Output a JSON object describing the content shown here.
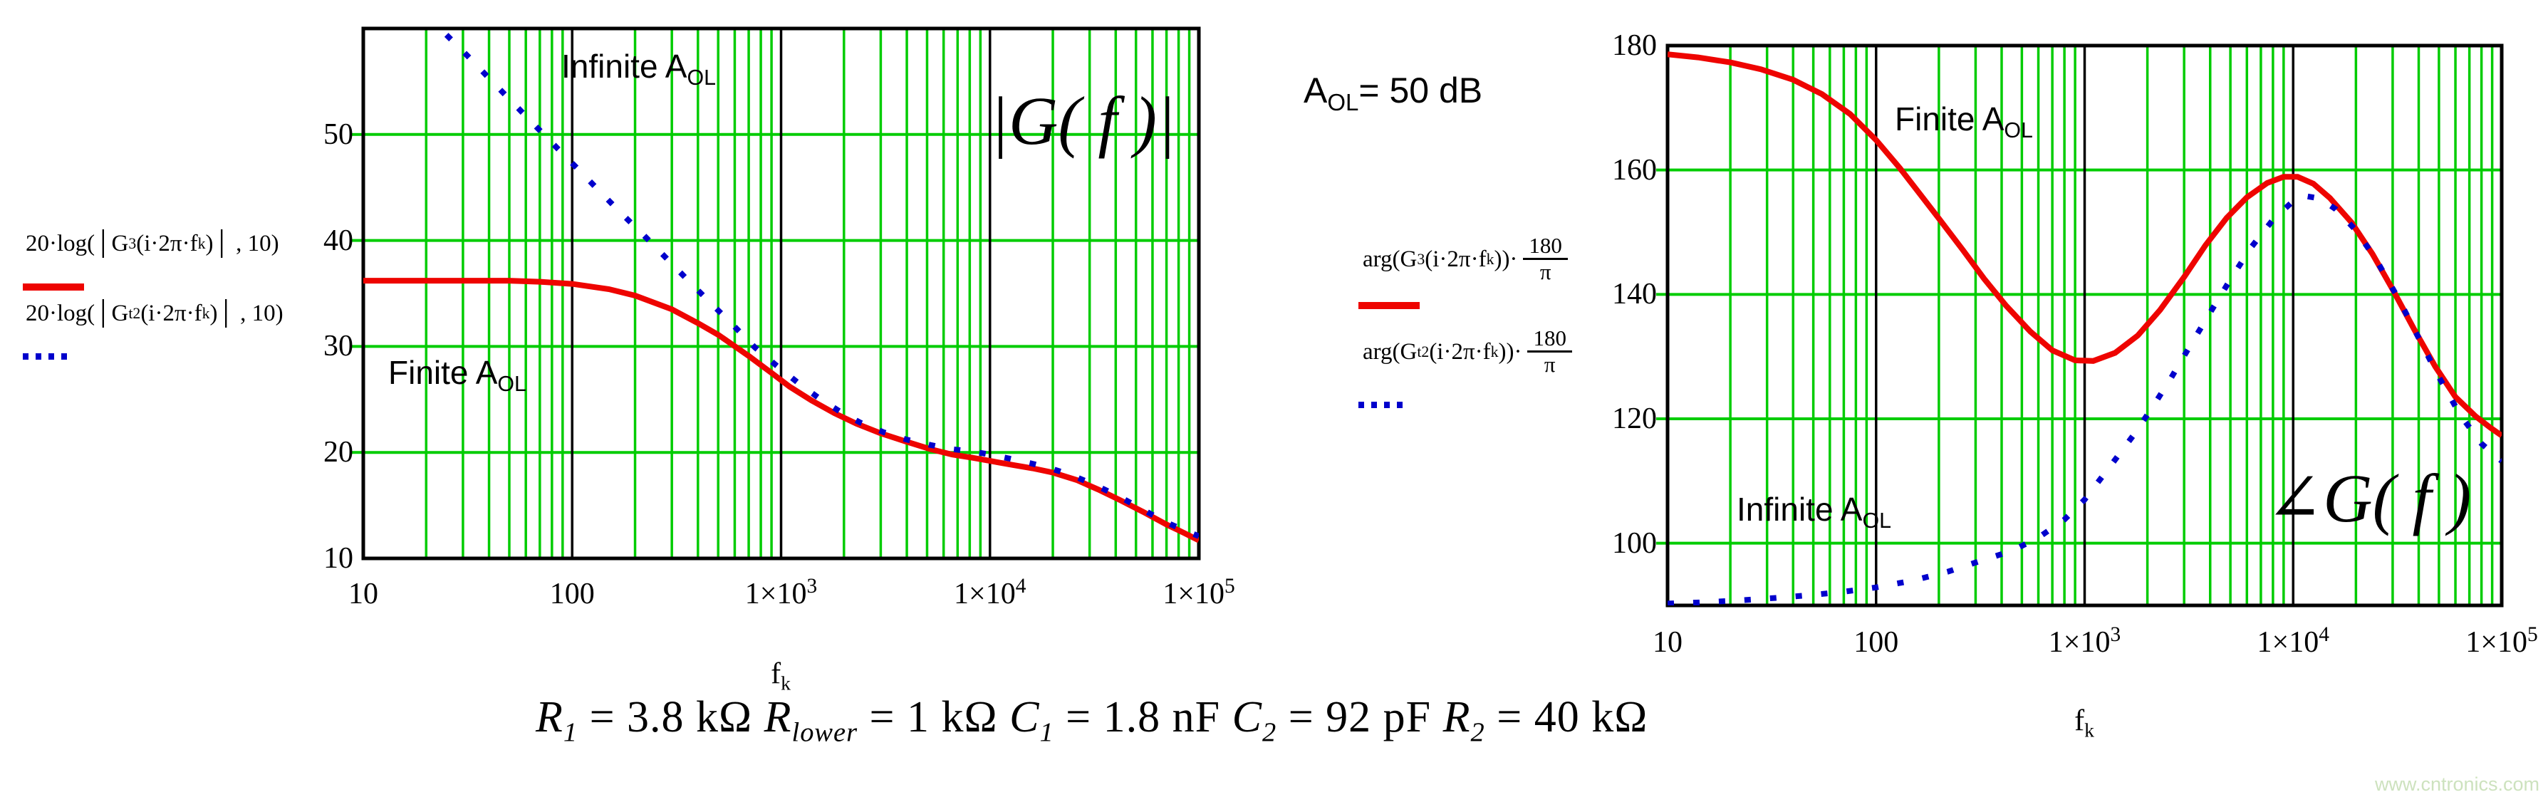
{
  "watermark": {
    "text": "www.cntronics.com",
    "color": "#cde2be"
  },
  "aol_note": {
    "segs": [
      {
        "t": "A"
      },
      {
        "s": "OL"
      },
      {
        "t": "= 50 dB"
      }
    ]
  },
  "formula": {
    "segs": [
      {
        "t": "R",
        "i": 1
      },
      {
        "s": "1",
        "i": 1
      },
      {
        "t": " = 3.8 kΩ "
      },
      {
        "t": "R",
        "i": 1
      },
      {
        "s": "lower",
        "i": 1
      },
      {
        "t": " = 1 kΩ "
      },
      {
        "t": "C",
        "i": 1
      },
      {
        "s": "1",
        "i": 1
      },
      {
        "t": " = 1.8 nF "
      },
      {
        "t": "C",
        "i": 1
      },
      {
        "s": "2",
        "i": 1
      },
      {
        "t": " = 92 pF "
      },
      {
        "t": "R",
        "i": 1
      },
      {
        "s": "2",
        "i": 1
      },
      {
        "t": " = 40 kΩ"
      }
    ]
  },
  "colors": {
    "grid_green": "#00cc00",
    "decade_black": "#000000",
    "trace_red": "#ee0400",
    "trace_blue": "#0000cc"
  },
  "chart_data": [
    {
      "type": "line",
      "title": "|G( f )|",
      "x_scale": "log",
      "x_range": [
        10,
        100000
      ],
      "y_range": [
        10,
        60
      ],
      "y_gridlines": [
        20,
        30,
        40,
        50
      ],
      "x_decades": [
        100,
        1000,
        10000
      ],
      "y_ticks": [
        50,
        40,
        30,
        20,
        10
      ],
      "x_ticks": [
        {
          "v": 10,
          "m": "10",
          "sup": ""
        },
        {
          "v": 100,
          "m": "100",
          "sup": ""
        },
        {
          "v": 1000,
          "m": "1×10",
          "sup": "3"
        },
        {
          "v": 10000,
          "m": "1×10",
          "sup": "4"
        },
        {
          "v": 100000,
          "m": "1×10",
          "sup": "5"
        }
      ],
      "xlabel_segs": [
        {
          "t": "f"
        },
        {
          "s": "k"
        }
      ],
      "annotations": [
        {
          "name": "infinite-aol-label",
          "segs": [
            {
              "t": "Infinite A"
            },
            {
              "s": "OL"
            }
          ]
        },
        {
          "name": "finite-aol-label",
          "segs": [
            {
              "t": "Finite A"
            },
            {
              "s": "OL"
            }
          ]
        }
      ],
      "legend": [
        {
          "style": "solid-red",
          "segs": [
            {
              "t": "20·log"
            },
            {
              "t": "(│G"
            },
            {
              "s": "3"
            },
            {
              "t": "(i·2π·f"
            },
            {
              "s": "k"
            },
            {
              "t": ")│ , 10)"
            }
          ]
        },
        {
          "style": "dotted-blue",
          "segs": [
            {
              "t": "20·log"
            },
            {
              "t": "(│G"
            },
            {
              "s": "t2"
            },
            {
              "t": "(i·2π·f"
            },
            {
              "s": "k"
            },
            {
              "t": ")│ , 10)"
            }
          ]
        }
      ],
      "series": [
        {
          "name": "finite-AOL-gain-dB",
          "color": "#ee0400",
          "style": "solid",
          "points": [
            [
              10,
              36.2
            ],
            [
              20,
              36.2
            ],
            [
              30,
              36.2
            ],
            [
              50,
              36.2
            ],
            [
              70,
              36.1
            ],
            [
              100,
              35.9
            ],
            [
              150,
              35.4
            ],
            [
              200,
              34.8
            ],
            [
              300,
              33.5
            ],
            [
              400,
              32.2
            ],
            [
              500,
              31.1
            ],
            [
              700,
              29.1
            ],
            [
              900,
              27.5
            ],
            [
              1100,
              26.2
            ],
            [
              1400,
              24.9
            ],
            [
              1800,
              23.7
            ],
            [
              2300,
              22.7
            ],
            [
              3000,
              21.8
            ],
            [
              4000,
              21.0
            ],
            [
              5200,
              20.3
            ],
            [
              6600,
              19.8
            ],
            [
              8200,
              19.5
            ],
            [
              10000,
              19.2
            ],
            [
              13000,
              18.8
            ],
            [
              16000,
              18.5
            ],
            [
              20000,
              18.1
            ],
            [
              26000,
              17.4
            ],
            [
              33000,
              16.5
            ],
            [
              42000,
              15.5
            ],
            [
              54000,
              14.4
            ],
            [
              70000,
              13.2
            ],
            [
              85000,
              12.4
            ],
            [
              100000,
              11.7
            ]
          ]
        },
        {
          "name": "infinite-AOL-gain-dB",
          "color": "#0000cc",
          "style": "dotted",
          "points": [
            [
              25,
              59.4
            ],
            [
              32,
              57.3
            ],
            [
              40,
              55.3
            ],
            [
              52,
              53.0
            ],
            [
              66,
              50.9
            ],
            [
              84,
              48.8
            ],
            [
              107,
              46.7
            ],
            [
              136,
              44.6
            ],
            [
              173,
              42.5
            ],
            [
              220,
              40.5
            ],
            [
              280,
              38.4
            ],
            [
              360,
              36.2
            ],
            [
              460,
              34.1
            ],
            [
              590,
              32.0
            ],
            [
              750,
              29.9
            ],
            [
              950,
              28.2
            ],
            [
              1200,
              26.6
            ],
            [
              1500,
              25.2
            ],
            [
              1900,
              23.9
            ],
            [
              2400,
              22.8
            ],
            [
              3100,
              21.9
            ],
            [
              4000,
              21.2
            ],
            [
              5200,
              20.7
            ],
            [
              6600,
              20.3
            ],
            [
              8200,
              20.1
            ],
            [
              10000,
              19.8
            ],
            [
              12500,
              19.4
            ],
            [
              15500,
              19.0
            ],
            [
              19500,
              18.5
            ],
            [
              25000,
              17.8
            ],
            [
              32000,
              16.9
            ],
            [
              41000,
              15.9
            ],
            [
              53000,
              14.7
            ],
            [
              68000,
              13.5
            ],
            [
              84000,
              12.7
            ],
            [
              100000,
              12.1
            ]
          ]
        }
      ]
    },
    {
      "type": "line",
      "title": "∠G( f )",
      "x_scale": "log",
      "x_range": [
        10,
        100000
      ],
      "y_range": [
        90,
        180
      ],
      "y_gridlines": [
        100,
        120,
        140,
        160
      ],
      "x_decades": [
        100,
        1000,
        10000
      ],
      "y_ticks": [
        180,
        160,
        140,
        120,
        100
      ],
      "x_ticks": [
        {
          "v": 10,
          "m": "10",
          "sup": ""
        },
        {
          "v": 100,
          "m": "100",
          "sup": ""
        },
        {
          "v": 1000,
          "m": "1×10",
          "sup": "3"
        },
        {
          "v": 10000,
          "m": "1×10",
          "sup": "4"
        },
        {
          "v": 100000,
          "m": "1×10",
          "sup": "5"
        }
      ],
      "xlabel_segs": [
        {
          "t": "f"
        },
        {
          "s": "k"
        }
      ],
      "annotations": [
        {
          "name": "finite-aol-label",
          "segs": [
            {
              "t": "Finite A"
            },
            {
              "s": "OL"
            }
          ]
        },
        {
          "name": "infinite-aol-label",
          "segs": [
            {
              "t": "Infinite A"
            },
            {
              "s": "OL"
            }
          ]
        }
      ],
      "legend": [
        {
          "style": "solid-red",
          "segs": [
            {
              "t": "arg"
            },
            {
              "t": "(G"
            },
            {
              "s": "3"
            },
            {
              "t": "(i·2π·f"
            },
            {
              "s": "k"
            },
            {
              "t": "))·"
            }
          ],
          "frac": {
            "num": "180",
            "den": "π"
          }
        },
        {
          "style": "dotted-blue",
          "segs": [
            {
              "t": "arg"
            },
            {
              "t": "(G"
            },
            {
              "s": "t2"
            },
            {
              "t": "(i·2π·f"
            },
            {
              "s": "k"
            },
            {
              "t": "))·"
            }
          ],
          "frac": {
            "num": "180",
            "den": "π"
          }
        }
      ],
      "series": [
        {
          "name": "finite-AOL-phase-deg",
          "color": "#ee0400",
          "style": "solid",
          "points": [
            [
              10,
              178.6
            ],
            [
              14,
              178.1
            ],
            [
              20,
              177.3
            ],
            [
              28,
              176.2
            ],
            [
              40,
              174.5
            ],
            [
              55,
              172.2
            ],
            [
              75,
              169.0
            ],
            [
              100,
              164.8
            ],
            [
              130,
              160.3
            ],
            [
              160,
              156.4
            ],
            [
              200,
              152.2
            ],
            [
              260,
              147.2
            ],
            [
              330,
              142.5
            ],
            [
              420,
              138.2
            ],
            [
              550,
              134.0
            ],
            [
              700,
              131.0
            ],
            [
              900,
              129.4
            ],
            [
              1100,
              129.3
            ],
            [
              1400,
              130.6
            ],
            [
              1800,
              133.4
            ],
            [
              2300,
              137.5
            ],
            [
              3000,
              142.8
            ],
            [
              3800,
              147.9
            ],
            [
              4800,
              152.3
            ],
            [
              6000,
              155.6
            ],
            [
              7500,
              157.9
            ],
            [
              9000,
              158.9
            ],
            [
              10500,
              158.9
            ],
            [
              12500,
              157.8
            ],
            [
              15000,
              155.5
            ],
            [
              19000,
              151.6
            ],
            [
              24000,
              146.5
            ],
            [
              30000,
              140.8
            ],
            [
              38000,
              134.4
            ],
            [
              48000,
              128.4
            ],
            [
              60000,
              123.5
            ],
            [
              75000,
              120.4
            ],
            [
              88000,
              118.6
            ],
            [
              100000,
              117.3
            ]
          ]
        },
        {
          "name": "infinite-AOL-phase-deg",
          "color": "#0000cc",
          "style": "dotted",
          "points": [
            [
              10,
              90.3
            ],
            [
              15,
              90.5
            ],
            [
              22,
              90.8
            ],
            [
              33,
              91.2
            ],
            [
              50,
              91.7
            ],
            [
              70,
              92.2
            ],
            [
              100,
              92.9
            ],
            [
              150,
              94.0
            ],
            [
              220,
              95.4
            ],
            [
              320,
              97.2
            ],
            [
              450,
              98.8
            ],
            [
              600,
              100.9
            ],
            [
              800,
              103.8
            ],
            [
              1000,
              107.0
            ],
            [
              1300,
              112.0
            ],
            [
              1700,
              117.2
            ],
            [
              2100,
              121.7
            ],
            [
              2600,
              126.6
            ],
            [
              3200,
              131.7
            ],
            [
              4000,
              137.1
            ],
            [
              5000,
              142.4
            ],
            [
              6300,
              147.6
            ],
            [
              8000,
              152.0
            ],
            [
              10000,
              155.0
            ],
            [
              11500,
              155.8
            ],
            [
              13500,
              155.4
            ],
            [
              16000,
              153.7
            ],
            [
              20000,
              150.3
            ],
            [
              25000,
              145.6
            ],
            [
              32000,
              139.3
            ],
            [
              40000,
              133.0
            ],
            [
              50000,
              126.7
            ],
            [
              63000,
              120.7
            ],
            [
              80000,
              116.0
            ],
            [
              100000,
              113.2
            ]
          ]
        }
      ]
    }
  ]
}
